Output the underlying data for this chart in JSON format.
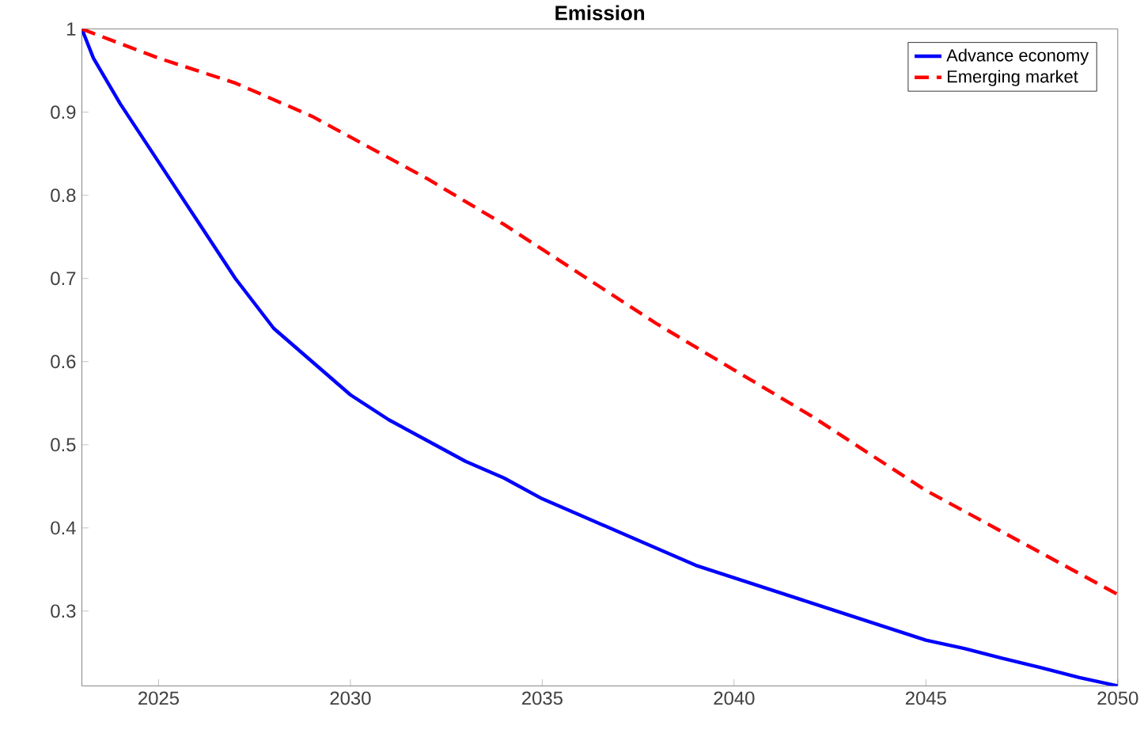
{
  "chart_data": {
    "type": "line",
    "title": "Emission",
    "xlim": [
      2023,
      2050
    ],
    "ylim": [
      0.21,
      1
    ],
    "xticks": [
      2025,
      2030,
      2035,
      2040,
      2045,
      2050
    ],
    "yticks": [
      0.3,
      0.4,
      0.5,
      0.6,
      0.7,
      0.8,
      0.9,
      1
    ],
    "grid": false,
    "legend": "top right",
    "marker": "none",
    "series": [
      {
        "name": "Advance economy",
        "color": "#0000ff",
        "line_style": "solid",
        "x": [
          2023,
          2023.3,
          2024,
          2025,
          2026,
          2027,
          2028,
          2029,
          2030,
          2031,
          2032,
          2033,
          2034,
          2035,
          2036,
          2037,
          2038,
          2039,
          2040,
          2041,
          2042,
          2043,
          2044,
          2045,
          2046,
          2047,
          2048,
          2049,
          2050
        ],
        "values": [
          1.0,
          0.965,
          0.91,
          0.84,
          0.77,
          0.7,
          0.64,
          0.6,
          0.56,
          0.53,
          0.505,
          0.48,
          0.46,
          0.435,
          0.415,
          0.395,
          0.375,
          0.355,
          0.34,
          0.325,
          0.31,
          0.295,
          0.28,
          0.265,
          0.255,
          0.243,
          0.232,
          0.22,
          0.21
        ]
      },
      {
        "name": "Emerging market",
        "color": "#ff0000",
        "line_style": "dashed",
        "x": [
          2023,
          2025,
          2027,
          2029,
          2030,
          2032,
          2034,
          2035,
          2036,
          2038,
          2040,
          2042,
          2044,
          2045,
          2046,
          2048,
          2050
        ],
        "values": [
          1.0,
          0.965,
          0.935,
          0.895,
          0.87,
          0.82,
          0.765,
          0.735,
          0.705,
          0.645,
          0.59,
          0.535,
          0.475,
          0.445,
          0.42,
          0.37,
          0.32
        ]
      }
    ]
  }
}
